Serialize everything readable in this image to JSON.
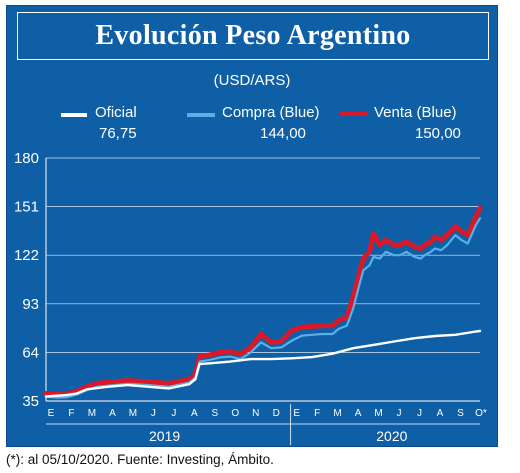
{
  "header": {
    "title": "Evolución Peso Argentino",
    "unit": "(USD/ARS)"
  },
  "legend": [
    {
      "name": "Oficial",
      "value": "76,75",
      "color": "#ffffff"
    },
    {
      "name": "Compra (Blue)",
      "value": "144,00",
      "color": "#5ab0e6"
    },
    {
      "name": "Venta (Blue)",
      "value": "150,00",
      "color": "#d7192a"
    }
  ],
  "footnote": "(*): al 05/10/2020. Fuente: Investing, Ámbito.",
  "chart_data": {
    "type": "line",
    "yticks": [
      35,
      64,
      93,
      122,
      151,
      180
    ],
    "ylim": [
      35,
      180
    ],
    "xlim": [
      0,
      21.2
    ],
    "months": [
      "E",
      "F",
      "M",
      "A",
      "M",
      "J",
      "J",
      "A",
      "S",
      "O",
      "N",
      "D",
      "E",
      "F",
      "M",
      "A",
      "M",
      "J",
      "J",
      "A",
      "S",
      "O*"
    ],
    "years": [
      {
        "label": "2019",
        "start": 0,
        "end": 11
      },
      {
        "label": "2020",
        "start": 12,
        "end": 21.2
      }
    ],
    "series": [
      {
        "name": "Oficial",
        "color": "#ffffff",
        "x": [
          0,
          1,
          1.5,
          2,
          3,
          4,
          5,
          6,
          7,
          7.3,
          7.5,
          8,
          9,
          10,
          11,
          12,
          13,
          14,
          15,
          16,
          17,
          18,
          19,
          20,
          21,
          21.2
        ],
        "y": [
          37.7,
          38.5,
          39.5,
          42,
          43.5,
          44.5,
          43.5,
          42.5,
          45,
          48,
          57,
          57.5,
          58.5,
          60,
          60,
          60.5,
          61.2,
          63.2,
          66.5,
          68.5,
          70.5,
          72.5,
          73.8,
          74.5,
          76.5,
          76.75
        ]
      },
      {
        "name": "Compra (Blue)",
        "color": "#5ab0e6",
        "x": [
          0,
          0.5,
          1,
          1.5,
          2,
          2.5,
          3,
          4,
          5,
          6,
          7,
          7.3,
          7.5,
          8,
          8.5,
          9,
          9.5,
          10,
          10.5,
          11,
          11.5,
          12,
          12.5,
          13,
          13.5,
          14,
          14.3,
          14.7,
          15,
          15.3,
          15.5,
          15.8,
          16,
          16.3,
          16.6,
          17,
          17.3,
          17.6,
          18,
          18.3,
          18.5,
          18.8,
          19,
          19.3,
          19.6,
          20,
          20.3,
          20.6,
          21,
          21.2
        ],
        "y": [
          37.7,
          37,
          37.2,
          38.8,
          41.5,
          43.5,
          44,
          45.2,
          44.5,
          43.5,
          46,
          49,
          58.5,
          59.5,
          61,
          61.5,
          60,
          64,
          70,
          66.5,
          67,
          71,
          74,
          74.5,
          75,
          75,
          78,
          80,
          90,
          104,
          113,
          116,
          121,
          120,
          124,
          122,
          122,
          124,
          121,
          120,
          122,
          124,
          126,
          125,
          128,
          134,
          131,
          129,
          140,
          144
        ]
      },
      {
        "name": "Venta (Blue)",
        "color": "#d7192a",
        "x": [
          0,
          0.5,
          1,
          1.5,
          2,
          2.5,
          3,
          4,
          5,
          6,
          7,
          7.3,
          7.5,
          8,
          8.5,
          9,
          9.5,
          10,
          10.5,
          11,
          11.5,
          12,
          12.5,
          13,
          13.5,
          14,
          14.3,
          14.7,
          15,
          15.3,
          15.5,
          15.8,
          16,
          16.3,
          16.6,
          17,
          17.3,
          17.6,
          18,
          18.3,
          18.5,
          18.8,
          19,
          19.3,
          19.6,
          20,
          20.3,
          20.6,
          21,
          21.2
        ],
        "y": [
          39.5,
          38.8,
          39,
          40.8,
          43.5,
          45.5,
          46.2,
          47.2,
          46.5,
          45.5,
          48,
          51,
          61.5,
          62.5,
          64,
          64.5,
          63,
          67,
          75,
          70,
          70.5,
          77,
          79,
          79.5,
          80,
          80,
          83,
          85,
          97,
          111,
          120,
          124,
          135,
          128,
          131,
          128,
          128,
          130,
          127,
          126,
          128,
          130,
          133,
          131,
          134,
          139,
          136,
          134,
          145,
          150
        ]
      }
    ]
  }
}
